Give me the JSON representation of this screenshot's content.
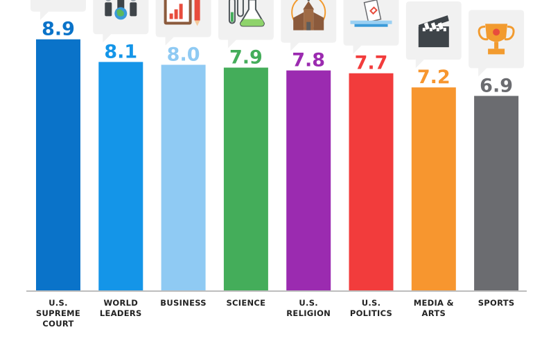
{
  "chart_data": {
    "type": "bar",
    "categories": [
      [
        "U.S.",
        "SUPREME",
        "COURT"
      ],
      [
        "WORLD",
        "LEADERS"
      ],
      [
        "BUSINESS"
      ],
      [
        "SCIENCE"
      ],
      [
        "U.S.",
        "RELIGION"
      ],
      [
        "U.S.",
        "POLITICS"
      ],
      [
        "MEDIA &",
        "ARTS"
      ],
      [
        "SPORTS"
      ]
    ],
    "values": [
      8.9,
      8.1,
      8.0,
      7.9,
      7.8,
      7.7,
      7.2,
      6.9
    ],
    "value_labels": [
      "8.9",
      "8.1",
      "8.0",
      "7.9",
      "7.8",
      "7.7",
      "7.2",
      "6.9"
    ],
    "colors": [
      "#0a73c9",
      "#1495e8",
      "#8fcaf3",
      "#44ad5a",
      "#9b2bb0",
      "#f23c3c",
      "#f7962f",
      "#6b6c70"
    ],
    "icons": [
      "scales-of-justice-icon",
      "world-leaders-icon",
      "business-chart-clipboard-icon",
      "science-flask-icon",
      "church-icon",
      "ballot-box-icon",
      "clapperboard-icon",
      "trophy-icon"
    ],
    "title": "",
    "xlabel": "",
    "ylabel": "",
    "ylim": [
      0,
      10.29
    ],
    "grid": false,
    "legend": "none"
  }
}
